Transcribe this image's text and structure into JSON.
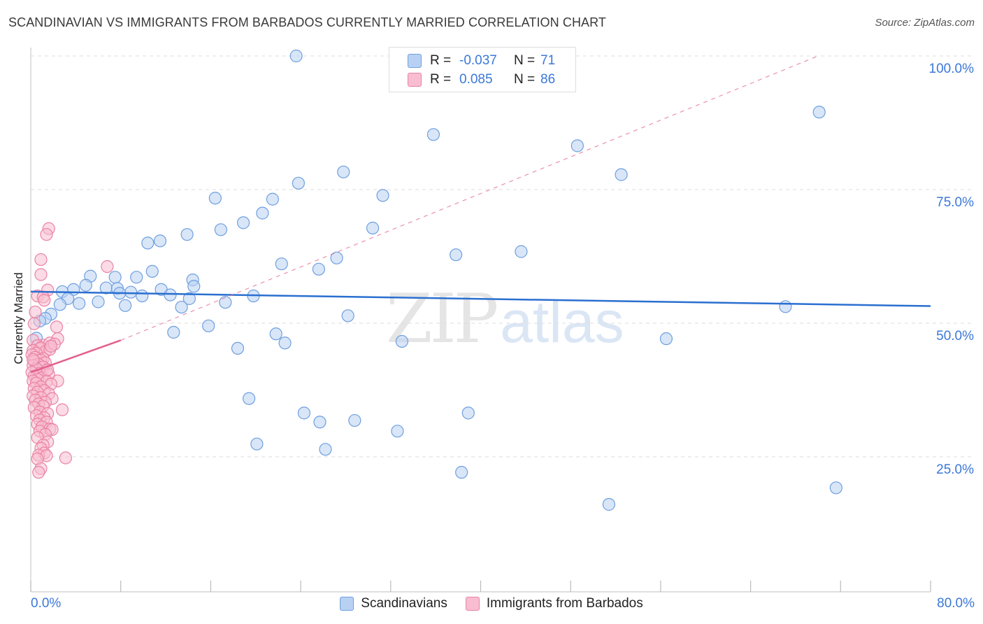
{
  "title": "SCANDINAVIAN VS IMMIGRANTS FROM BARBADOS CURRENTLY MARRIED CORRELATION CHART",
  "source": "Source: ZipAtlas.com",
  "watermark": {
    "zip": "ZIP",
    "atlas": "atlas"
  },
  "legend_top": [
    {
      "r_label": "R =",
      "r_value": "-0.037",
      "n_label": "N =",
      "n_value": "71"
    },
    {
      "r_label": "R =",
      "r_value": "0.085",
      "n_label": "N =",
      "n_value": "86"
    }
  ],
  "legend_bottom": [
    "Scandinavians",
    "Immigrants from Barbados"
  ],
  "colors": {
    "blue_fill": "#b8d1f3",
    "blue_stroke": "#6f9fdf",
    "blue_line": "#2a6fd0",
    "pink_fill": "#f8bdd0",
    "pink_stroke": "#ea82a5",
    "pink_line": "#e35f8c",
    "tick_text": "#3b78d8",
    "grid": "#dddddd"
  },
  "chart_data": {
    "type": "scatter",
    "title": "SCANDINAVIAN VS IMMIGRANTS FROM BARBADOS CURRENTLY MARRIED CORRELATION CHART",
    "xlabel": "",
    "ylabel": "Currently Married",
    "xlim": [
      0,
      80
    ],
    "ylim": [
      0,
      102
    ],
    "x_ticks": [
      "0.0%",
      "80.0%"
    ],
    "y_ticks": [
      {
        "value": 25,
        "label": "25.0%"
      },
      {
        "value": 50,
        "label": "50.0%"
      },
      {
        "value": 75,
        "label": "75.0%"
      },
      {
        "value": 100,
        "label": "100.0%"
      }
    ],
    "grid": true,
    "legend_position": "top-center",
    "series": [
      {
        "name": "Scandinavians",
        "color": "#b8d1f3",
        "r": -0.037,
        "n": 71,
        "trend": {
          "x": [
            0,
            80
          ],
          "y": [
            55.9,
            53.2
          ],
          "style": "solid"
        },
        "points": [
          [
            23.6,
            100
          ],
          [
            70.1,
            89.5
          ],
          [
            35.8,
            85.3
          ],
          [
            48.6,
            83.2
          ],
          [
            27.8,
            78.3
          ],
          [
            52.5,
            77.8
          ],
          [
            23.8,
            76.2
          ],
          [
            16.4,
            73.4
          ],
          [
            21.5,
            73.2
          ],
          [
            31.3,
            73.9
          ],
          [
            20.6,
            70.6
          ],
          [
            18.9,
            68.8
          ],
          [
            16.9,
            67.5
          ],
          [
            30.4,
            67.8
          ],
          [
            13.9,
            66.6
          ],
          [
            10.4,
            65
          ],
          [
            11.5,
            65.4
          ],
          [
            37.8,
            62.8
          ],
          [
            43.6,
            63.4
          ],
          [
            27.2,
            62.2
          ],
          [
            22.3,
            61.1
          ],
          [
            25.6,
            60.1
          ],
          [
            5.3,
            58.8
          ],
          [
            10.8,
            59.7
          ],
          [
            14.4,
            58.1
          ],
          [
            7.5,
            58.6
          ],
          [
            9.4,
            58.6
          ],
          [
            4.9,
            57.1
          ],
          [
            3.8,
            56.3
          ],
          [
            2.8,
            55.9
          ],
          [
            6.7,
            56.6
          ],
          [
            7.7,
            56.5
          ],
          [
            8.9,
            55.8
          ],
          [
            11.6,
            56.3
          ],
          [
            14.5,
            56.9
          ],
          [
            7.9,
            55.6
          ],
          [
            9.9,
            55.1
          ],
          [
            12.4,
            55.3
          ],
          [
            3.3,
            54.6
          ],
          [
            19.8,
            55.1
          ],
          [
            4.3,
            53.7
          ],
          [
            14.1,
            54.6
          ],
          [
            6.0,
            54
          ],
          [
            2.6,
            53.5
          ],
          [
            8.4,
            53.3
          ],
          [
            13.4,
            53
          ],
          [
            17.3,
            53.9
          ],
          [
            1.8,
            51.7
          ],
          [
            1.3,
            50.9
          ],
          [
            0.8,
            50.4
          ],
          [
            67.1,
            53.1
          ],
          [
            28.2,
            51.4
          ],
          [
            15.8,
            49.5
          ],
          [
            12.7,
            48.3
          ],
          [
            21.8,
            48
          ],
          [
            56.5,
            47.1
          ],
          [
            22.6,
            46.3
          ],
          [
            33.0,
            46.6
          ],
          [
            18.4,
            45.3
          ],
          [
            19.4,
            35.9
          ],
          [
            24.3,
            33.2
          ],
          [
            38.9,
            33.2
          ],
          [
            25.7,
            31.5
          ],
          [
            28.8,
            31.8
          ],
          [
            32.6,
            29.8
          ],
          [
            20.1,
            27.4
          ],
          [
            26.2,
            26.4
          ],
          [
            38.3,
            22.1
          ],
          [
            51.4,
            16.1
          ],
          [
            71.6,
            19.2
          ],
          [
            0.5,
            47.2
          ]
        ]
      },
      {
        "name": "Immigrants from Barbados",
        "color": "#f8bdd0",
        "r": 0.085,
        "n": 86,
        "trend": {
          "x": [
            0,
            8
          ],
          "y": [
            40.8,
            46.8
          ],
          "style": "solid",
          "extension": {
            "x": [
              8,
              70
            ],
            "y": [
              46.8,
              100
            ],
            "style": "dashed"
          }
        },
        "points": [
          [
            1.6,
            67.7
          ],
          [
            1.4,
            66.6
          ],
          [
            0.9,
            61.9
          ],
          [
            0.9,
            59.1
          ],
          [
            6.8,
            60.6
          ],
          [
            1.5,
            56.2
          ],
          [
            0.6,
            55.1
          ],
          [
            1.1,
            54.9
          ],
          [
            1.2,
            54.3
          ],
          [
            0.4,
            52.1
          ],
          [
            0.3,
            49.9
          ],
          [
            2.3,
            49.3
          ],
          [
            2.4,
            47.1
          ],
          [
            0.2,
            46.8
          ],
          [
            1.1,
            45.9
          ],
          [
            1.7,
            46.3
          ],
          [
            0.6,
            45.8
          ],
          [
            0.8,
            45.2
          ],
          [
            0.9,
            45.4
          ],
          [
            0.2,
            44.9
          ],
          [
            1.3,
            44.7
          ],
          [
            0.5,
            44.4
          ],
          [
            1.7,
            45.1
          ],
          [
            0.1,
            44.1
          ],
          [
            1.1,
            43.4
          ],
          [
            0.4,
            43.6
          ],
          [
            0.9,
            43.1
          ],
          [
            0.3,
            42.9
          ],
          [
            1.3,
            42.6
          ],
          [
            0.7,
            42.3
          ],
          [
            0.2,
            42.1
          ],
          [
            1.1,
            41.8
          ],
          [
            0.5,
            41.5
          ],
          [
            1.4,
            41.1
          ],
          [
            0.1,
            40.8
          ],
          [
            0.8,
            40.6
          ],
          [
            1.6,
            40.4
          ],
          [
            0.3,
            40.1
          ],
          [
            1.0,
            39.8
          ],
          [
            0.6,
            39.5
          ],
          [
            0.2,
            39.2
          ],
          [
            1.4,
            39.1
          ],
          [
            2.4,
            39.2
          ],
          [
            0.5,
            38.8
          ],
          [
            1.8,
            38.6
          ],
          [
            0.9,
            38.1
          ],
          [
            0.3,
            37.8
          ],
          [
            1.2,
            37.4
          ],
          [
            0.6,
            37.1
          ],
          [
            1.6,
            36.8
          ],
          [
            0.2,
            36.4
          ],
          [
            0.9,
            36.1
          ],
          [
            1.9,
            35.9
          ],
          [
            0.4,
            35.6
          ],
          [
            1.3,
            35.2
          ],
          [
            0.7,
            34.9
          ],
          [
            1.1,
            34.5
          ],
          [
            0.3,
            34.2
          ],
          [
            2.8,
            33.8
          ],
          [
            0.8,
            33.4
          ],
          [
            1.5,
            33.1
          ],
          [
            0.5,
            32.7
          ],
          [
            1.2,
            32.3
          ],
          [
            0.8,
            31.9
          ],
          [
            1.4,
            31.5
          ],
          [
            0.6,
            31.1
          ],
          [
            1.0,
            30.6
          ],
          [
            1.7,
            30.2
          ],
          [
            1.9,
            30.1
          ],
          [
            0.8,
            29.8
          ],
          [
            1.3,
            29.2
          ],
          [
            0.6,
            28.6
          ],
          [
            1.5,
            27.8
          ],
          [
            1.1,
            27.2
          ],
          [
            0.9,
            26.6
          ],
          [
            1.2,
            25.7
          ],
          [
            0.7,
            25.3
          ],
          [
            1.4,
            25.2
          ],
          [
            3.1,
            24.8
          ],
          [
            0.6,
            24.6
          ],
          [
            0.9,
            22.8
          ],
          [
            0.7,
            22.1
          ],
          [
            2.1,
            46.1
          ],
          [
            1.8,
            45.7
          ],
          [
            1.5,
            41.3
          ],
          [
            0.2,
            43.2
          ]
        ]
      }
    ]
  }
}
